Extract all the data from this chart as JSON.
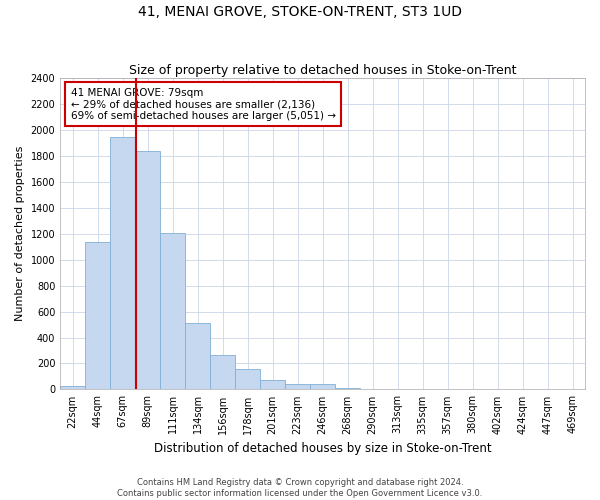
{
  "title": "41, MENAI GROVE, STOKE-ON-TRENT, ST3 1UD",
  "subtitle": "Size of property relative to detached houses in Stoke-on-Trent",
  "xlabel": "Distribution of detached houses by size in Stoke-on-Trent",
  "ylabel": "Number of detached properties",
  "categories": [
    "22sqm",
    "44sqm",
    "67sqm",
    "89sqm",
    "111sqm",
    "134sqm",
    "156sqm",
    "178sqm",
    "201sqm",
    "223sqm",
    "246sqm",
    "268sqm",
    "290sqm",
    "313sqm",
    "335sqm",
    "357sqm",
    "380sqm",
    "402sqm",
    "424sqm",
    "447sqm",
    "469sqm"
  ],
  "values": [
    30,
    1140,
    1950,
    1840,
    1210,
    510,
    265,
    160,
    75,
    45,
    40,
    10,
    5,
    3,
    3,
    3,
    3,
    2,
    2,
    2,
    2
  ],
  "bar_color": "#c5d8f0",
  "bar_edge_color": "#7fafd4",
  "vline_color": "#cc0000",
  "annotation_text": "41 MENAI GROVE: 79sqm\n← 29% of detached houses are smaller (2,136)\n69% of semi-detached houses are larger (5,051) →",
  "annotation_box_color": "#ffffff",
  "annotation_box_edge": "#cc0000",
  "ylim": [
    0,
    2400
  ],
  "yticks": [
    0,
    200,
    400,
    600,
    800,
    1000,
    1200,
    1400,
    1600,
    1800,
    2000,
    2200,
    2400
  ],
  "footer1": "Contains HM Land Registry data © Crown copyright and database right 2024.",
  "footer2": "Contains public sector information licensed under the Open Government Licence v3.0.",
  "bg_color": "#ffffff",
  "grid_color": "#ccd6e8",
  "title_fontsize": 10,
  "subtitle_fontsize": 9,
  "tick_fontsize": 7,
  "ylabel_fontsize": 8,
  "xlabel_fontsize": 8.5
}
